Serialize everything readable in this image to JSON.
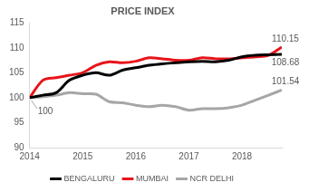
{
  "chart_data": {
    "type": "line",
    "title": "PRICE INDEX",
    "categories": [
      "2014",
      null,
      null,
      null,
      "2015",
      null,
      null,
      null,
      "2016",
      null,
      null,
      null,
      "2017",
      null,
      null,
      null,
      "2018",
      null,
      null,
      null
    ],
    "series": [
      {
        "name": "BENGALURU",
        "color": "#000000",
        "values": [
          100,
          100.5,
          101,
          103.5,
          104.5,
          105,
          104.5,
          105.5,
          106,
          106.5,
          106.8,
          107,
          107.2,
          107.3,
          107.2,
          107.5,
          108.2,
          108.5,
          108.6,
          108.68
        ]
      },
      {
        "name": "MUMBAI",
        "color": "#e8141b",
        "values": [
          100,
          103.5,
          104,
          104.5,
          105,
          106.5,
          107.2,
          107,
          107.3,
          108,
          107.8,
          107.5,
          107.5,
          108,
          107.8,
          107.8,
          108,
          108.2,
          108.5,
          110.15
        ]
      },
      {
        "name": "NCR DELHI",
        "color": "#a6a6a6",
        "values": [
          100,
          100.2,
          100.5,
          101,
          100.8,
          100.7,
          99.2,
          99,
          98.5,
          98.2,
          98.5,
          98.2,
          97.5,
          97.8,
          97.8,
          98,
          98.5,
          99.5,
          100.5,
          101.54
        ]
      }
    ],
    "annotations": [
      {
        "text": "100",
        "series": "NCR DELHI",
        "point": 0
      },
      {
        "text": "110.15",
        "series": "MUMBAI",
        "point": 19
      },
      {
        "text": "108.68",
        "series": "BENGALURU",
        "point": 19
      },
      {
        "text": "101.54",
        "series": "NCR DELHI",
        "point": 19
      }
    ],
    "ylim": [
      90,
      115
    ],
    "yticks": [
      90,
      95,
      100,
      105,
      110,
      115
    ],
    "grid": false,
    "legend": "bottom"
  }
}
